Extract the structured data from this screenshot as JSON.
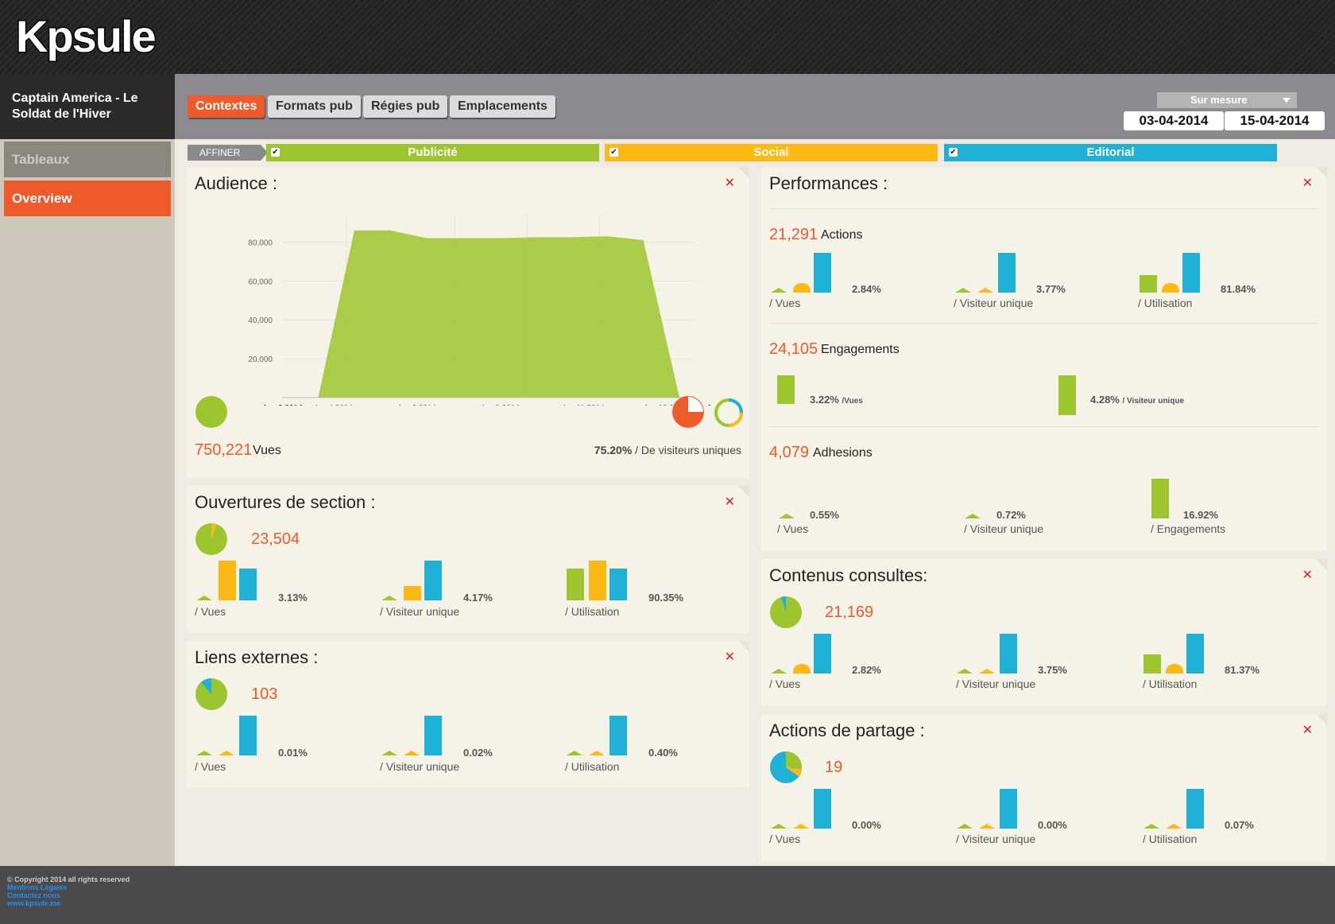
{
  "brand": {
    "logo": "Kpsule"
  },
  "header": {
    "title": "Captain America - Le Soldat de l'Hiver"
  },
  "tabs": [
    "Contextes",
    "Formats pub",
    "Régies pub",
    "Emplacements"
  ],
  "period": {
    "label": "Sur mesure",
    "start": "03-04-2014",
    "end": "15-04-2014"
  },
  "sidebar": {
    "items": [
      "Tableaux",
      "Overview"
    ]
  },
  "filters": {
    "affiner": "AFFINER",
    "items": [
      {
        "label": "Publicité",
        "color": "#9dc52d"
      },
      {
        "label": "Social",
        "color": "#fdb913"
      },
      {
        "label": "Editorial",
        "color": "#1fb2d6"
      }
    ]
  },
  "audience": {
    "title": "Audience :",
    "value": "750,221",
    "unit": "Vues",
    "unique_pct": "75.20%",
    "unique_label": "/ De visiteurs uniques"
  },
  "chart_data": {
    "type": "area",
    "x": [
      "Apr 3 2014",
      "Apr 4 2014",
      "Apr 5 2014",
      "Apr 6 2014",
      "Apr 7 2014",
      "Apr 8 2014",
      "Apr 9 2014",
      "Apr 10 2014",
      "Apr 11 2014",
      "Apr 12 2014",
      "Apr 13 2014",
      "Apr 14 2014"
    ],
    "series": [
      {
        "values": [
          0,
          0,
          86000,
          86000,
          82000,
          82000,
          82000,
          82500,
          82500,
          83000,
          81000,
          0
        ]
      }
    ],
    "ylim": [
      0,
      90000
    ],
    "yticks": [
      "20,000",
      "40,000",
      "60,000",
      "80,000"
    ],
    "xticks": [
      "Apr 3 2014",
      "Apr 4 2014",
      "Apr 6 2014",
      "Apr 9 2014",
      "Apr 11 2014",
      "Apr 13 2014",
      "Apr 15 2014"
    ],
    "grid": true,
    "color": "#9dc52d"
  },
  "ouvertures": {
    "title": "Ouvertures de section :",
    "value": "23,504",
    "metrics": [
      {
        "pct": "3.13%",
        "label": "/ Vues"
      },
      {
        "pct": "4.17%",
        "label": "/ Visiteur unique"
      },
      {
        "pct": "90.35%",
        "label": "/ Utilisation"
      }
    ]
  },
  "liens": {
    "title": "Liens externes :",
    "value": "103",
    "metrics": [
      {
        "pct": "0.01%",
        "label": "/ Vues"
      },
      {
        "pct": "0.02%",
        "label": "/ Visiteur unique"
      },
      {
        "pct": "0.40%",
        "label": "/ Utilisation"
      }
    ]
  },
  "performances": {
    "title": "Performances :",
    "actions": {
      "value": "21,291",
      "label": "Actions",
      "metrics": [
        {
          "pct": "2.84%",
          "label": "/ Vues"
        },
        {
          "pct": "3.77%",
          "label": "/ Visiteur unique"
        },
        {
          "pct": "81.84%",
          "label": "/ Utilisation"
        }
      ]
    },
    "engagements": {
      "value": "24,105",
      "label": "Engagements",
      "metrics": [
        {
          "pct": "3.22%",
          "label": "/Vues"
        },
        {
          "pct": "4.28%",
          "label": "/ Visiteur unique"
        }
      ]
    },
    "adhesions": {
      "value": "4,079",
      "label": "Adhesions",
      "metrics": [
        {
          "pct": "0.55%",
          "label": "/ Vues"
        },
        {
          "pct": "0.72%",
          "label": "/ Visiteur unique"
        },
        {
          "pct": "16.92%",
          "label": "/ Engagements"
        }
      ]
    }
  },
  "contenus": {
    "title": "Contenus consultes:",
    "value": "21,169",
    "metrics": [
      {
        "pct": "2.82%",
        "label": "/ Vues"
      },
      {
        "pct": "3.75%",
        "label": "/ Visiteur unique"
      },
      {
        "pct": "81.37%",
        "label": "/ Utilisation"
      }
    ]
  },
  "partage": {
    "title": "Actions de partage :",
    "value": "19",
    "metrics": [
      {
        "pct": "0.00%",
        "label": "/ Vues"
      },
      {
        "pct": "0.00%",
        "label": "/ Visiteur unique"
      },
      {
        "pct": "0.07%",
        "label": "/ Utilisation"
      }
    ]
  },
  "footer": {
    "copyright": "© Copyright 2014 all rights reserved",
    "links": [
      "Mentions Légales",
      "Contactez nous",
      "www.kpsule.me"
    ]
  }
}
